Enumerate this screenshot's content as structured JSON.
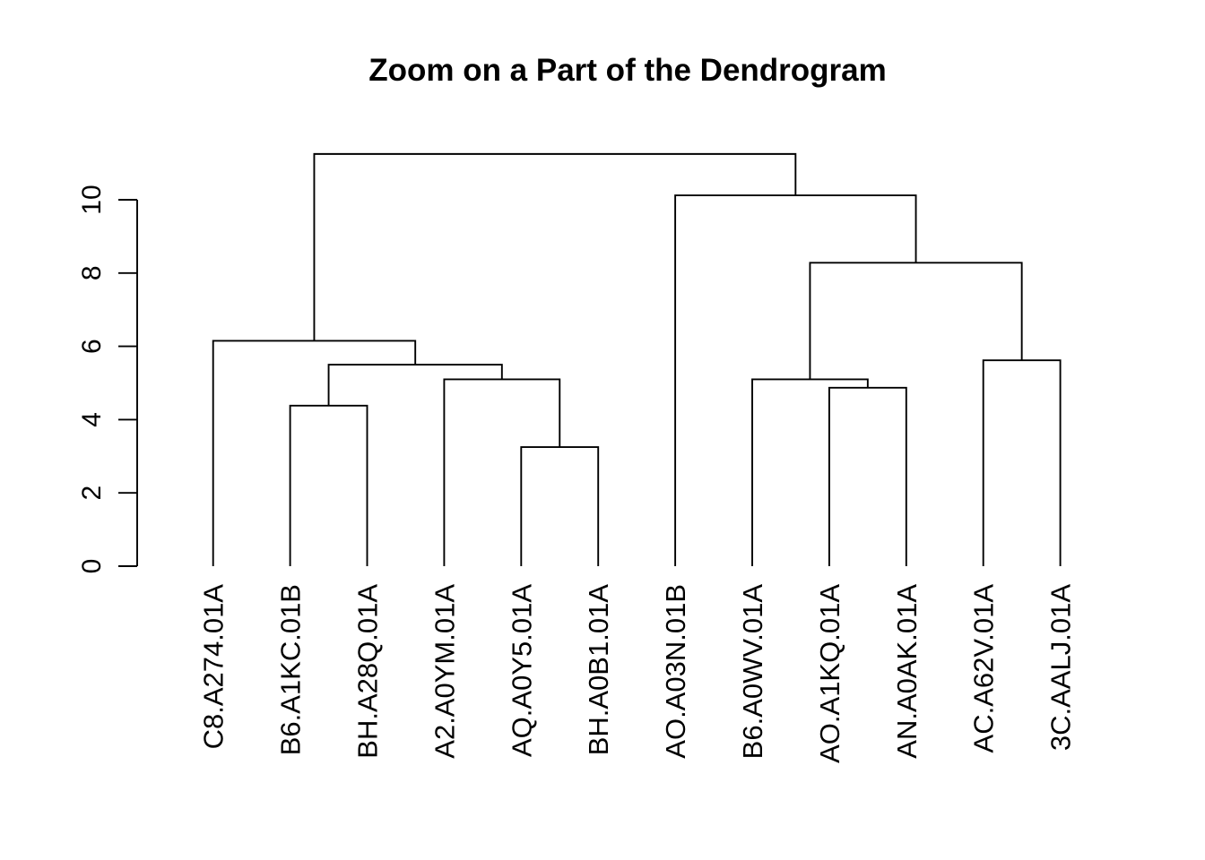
{
  "figure": {
    "background": "#ffffff",
    "line_color": "#000000",
    "text_color": "#000000"
  },
  "chart_data": {
    "type": "dendrogram",
    "title": "Zoom on a Part of the Dendrogram",
    "xlabel": "",
    "ylabel": "",
    "ylim": [
      0,
      10
    ],
    "yticks": [
      0,
      2,
      4,
      6,
      8,
      10
    ],
    "grid": false,
    "legend": null,
    "leaf_labels_rotated": true,
    "leaves": [
      "C8.A274.01A",
      "B6.A1KC.01B",
      "BH.A28Q.01A",
      "A2.A0YM.01A",
      "AQ.A0Y5.01A",
      "BH.A0B1.01A",
      "AO.A03N.01B",
      "B6.A0WV.01A",
      "AO.A1KQ.01A",
      "AN.A0AK.01A",
      "AC.A62V.01A",
      "3C.AALJ.01A"
    ],
    "merges": [
      {
        "id": "n1",
        "children": [
          "leaf:5",
          "leaf:6"
        ],
        "height": 3.25
      },
      {
        "id": "n2",
        "children": [
          "leaf:2",
          "leaf:3"
        ],
        "height": 4.38
      },
      {
        "id": "n3",
        "children": [
          "leaf:9",
          "leaf:10"
        ],
        "height": 4.87
      },
      {
        "id": "n4",
        "children": [
          "leaf:4",
          "n1"
        ],
        "height": 5.1
      },
      {
        "id": "n5",
        "children": [
          "leaf:8",
          "n3"
        ],
        "height": 5.1
      },
      {
        "id": "n6",
        "children": [
          "n2",
          "n4"
        ],
        "height": 5.5
      },
      {
        "id": "n7",
        "children": [
          "leaf:11",
          "leaf:12"
        ],
        "height": 5.62
      },
      {
        "id": "n8",
        "children": [
          "leaf:1",
          "n6"
        ],
        "height": 6.15
      },
      {
        "id": "n9",
        "children": [
          "n5",
          "n7"
        ],
        "height": 8.28
      },
      {
        "id": "n10",
        "children": [
          "leaf:7",
          "n9"
        ],
        "height": 10.12
      },
      {
        "id": "n11",
        "children": [
          "n8",
          "n10"
        ],
        "height": 11.25
      }
    ]
  }
}
